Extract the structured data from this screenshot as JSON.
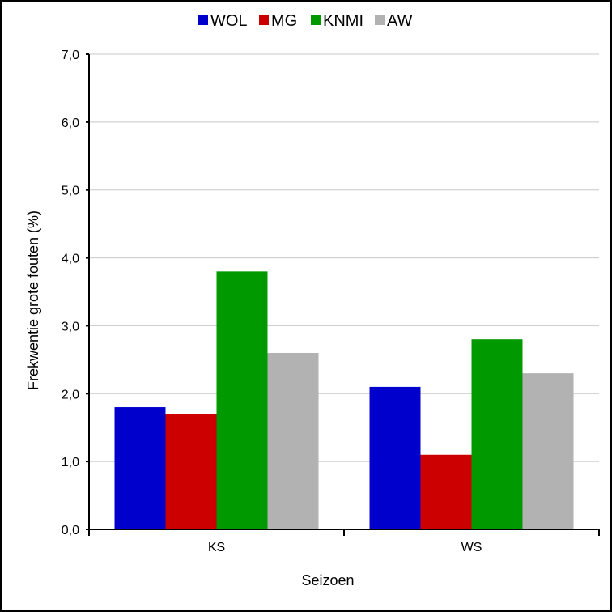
{
  "chart_data": {
    "type": "bar",
    "title": "",
    "xlabel": "Seizoen",
    "ylabel": "Frekwentie grote fouten (%)",
    "categories": [
      "KS",
      "WS"
    ],
    "series": [
      {
        "name": "WOL",
        "color": "#0000cc",
        "values": [
          1.8,
          2.1
        ]
      },
      {
        "name": "MG",
        "color": "#cc0000",
        "values": [
          1.7,
          1.1
        ]
      },
      {
        "name": "KNMI",
        "color": "#009900",
        "values": [
          3.8,
          2.8
        ]
      },
      {
        "name": "AW",
        "color": "#b2b2b2",
        "values": [
          2.6,
          2.3
        ]
      }
    ],
    "ylim": [
      0,
      7
    ],
    "yticks": [
      "0,0",
      "1,0",
      "2,0",
      "3,0",
      "4,0",
      "5,0",
      "6,0",
      "7,0"
    ],
    "grid": true,
    "legend": "top"
  }
}
